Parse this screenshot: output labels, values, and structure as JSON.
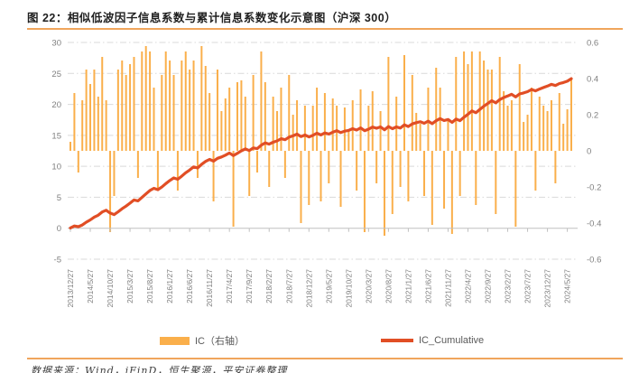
{
  "title": "图 22：相似低波因子信息系数与累计信息系数变化示意图（沪深 300）",
  "footer": "数据来源：Wind，iFinD，恒生聚源，平安证券整理",
  "legend": {
    "bar_label": "IC（右轴）",
    "line_label": "IC_Cumulative"
  },
  "colors": {
    "bar": "#FAAF4B",
    "line": "#E14E25",
    "rule": "#F0A55C",
    "grid": "#D9D9D9",
    "axis": "#C0C0C0",
    "tick_text": "#7F7F7F",
    "title_text": "#1F1F1F"
  },
  "chart_data": {
    "type": "bar+line",
    "title": "相似低波因子信息系数与累计信息系数变化示意图（沪深300）",
    "x_start": "2013/12/27",
    "x_frequency": "monthly",
    "x_tick_labels": [
      "2013/12/27",
      "2014/5/27",
      "2014/10/27",
      "2015/3/27",
      "2015/8/27",
      "2016/1/27",
      "2016/6/27",
      "2016/11/27",
      "2017/4/27",
      "2017/9/27",
      "2018/2/27",
      "2018/7/27",
      "2018/12/27",
      "2019/5/27",
      "2019/10/27",
      "2020/3/27",
      "2020/8/27",
      "2021/1/27",
      "2021/6/27",
      "2021/11/27",
      "2022/4/27",
      "2022/9/27",
      "2023/2/27",
      "2023/7/27",
      "2023/12/27",
      "2024/5/27"
    ],
    "x_tick_every_months": 5,
    "left_axis": {
      "min": -5,
      "max": 30,
      "step": 5,
      "ticks": [
        "30",
        "25",
        "20",
        "15",
        "10",
        "5",
        "0",
        "-5"
      ]
    },
    "right_axis": {
      "min": -0.6,
      "max": 0.6,
      "step": 0.2,
      "ticks": [
        "0.6",
        "0.4",
        "0.2",
        "0",
        "-0.2",
        "-0.4",
        "-0.6"
      ]
    },
    "grid": "dash-dot horizontal at left-axis ticks",
    "legend_position": "bottom",
    "series": [
      {
        "name": "IC（右轴）",
        "type": "bar",
        "axis": "right",
        "values": [
          0.05,
          0.32,
          -0.12,
          0.28,
          0.45,
          0.37,
          0.45,
          0.3,
          0.52,
          0.28,
          -0.45,
          -0.25,
          0.45,
          0.5,
          0.42,
          0.48,
          0.52,
          -0.15,
          0.55,
          0.58,
          0.55,
          0.35,
          -0.22,
          0.42,
          0.55,
          0.5,
          0.42,
          -0.22,
          0.5,
          0.55,
          0.45,
          0.5,
          -0.15,
          0.58,
          0.47,
          0.32,
          -0.28,
          0.45,
          0.22,
          0.29,
          0.35,
          -0.42,
          0.38,
          0.39,
          0.3,
          -0.25,
          0.42,
          -0.12,
          0.55,
          0.38,
          -0.2,
          0.3,
          0.22,
          0.35,
          -0.15,
          0.42,
          0.2,
          0.28,
          -0.4,
          0.25,
          -0.3,
          0.25,
          0.35,
          -0.28,
          0.32,
          -0.18,
          0.29,
          0.25,
          -0.31,
          0.24,
          0.12,
          0.28,
          -0.22,
          0.34,
          -0.45,
          0.25,
          0.33,
          -0.18,
          0.22,
          -0.47,
          0.52,
          -0.35,
          0.3,
          -0.2,
          0.53,
          -0.28,
          0.42,
          0.21,
          0.15,
          -0.25,
          0.35,
          -0.41,
          0.46,
          0.35,
          -0.32,
          0.18,
          -0.46,
          0.52,
          -0.25,
          0.55,
          0.48,
          0.55,
          -0.3,
          0.55,
          0.5,
          0.45,
          0.45,
          -0.35,
          0.52,
          0.33,
          0.25,
          0.28,
          -0.42,
          0.48,
          0.16,
          0.2,
          0.35,
          -0.22,
          0.3,
          0.25,
          0.22,
          0.28,
          -0.18,
          0.32,
          0.15,
          0.23,
          0.4
        ]
      },
      {
        "name": "IC_Cumulative",
        "type": "line",
        "axis": "left",
        "values": [
          0.05,
          0.37,
          0.25,
          0.53,
          0.98,
          1.35,
          1.8,
          2.1,
          2.62,
          2.9,
          2.45,
          2.2,
          2.65,
          3.15,
          3.57,
          4.05,
          4.57,
          4.42,
          4.97,
          5.55,
          6.1,
          6.45,
          6.23,
          6.65,
          7.2,
          7.7,
          8.12,
          7.9,
          8.4,
          8.95,
          9.4,
          9.9,
          9.75,
          10.33,
          10.8,
          11.12,
          10.84,
          11.29,
          11.51,
          11.8,
          12.15,
          11.73,
          12.11,
          12.5,
          12.8,
          12.55,
          12.97,
          12.85,
          13.4,
          13.78,
          13.58,
          13.88,
          14.1,
          14.45,
          14.3,
          14.72,
          14.92,
          15.2,
          14.8,
          15.05,
          14.75,
          15.0,
          15.35,
          15.07,
          15.39,
          15.21,
          15.5,
          15.75,
          15.44,
          15.68,
          15.8,
          16.08,
          15.86,
          16.2,
          15.75,
          16.0,
          16.33,
          16.15,
          16.37,
          15.9,
          16.42,
          16.07,
          16.37,
          16.17,
          16.7,
          16.42,
          16.84,
          17.05,
          17.2,
          16.95,
          17.3,
          16.89,
          17.35,
          17.7,
          17.38,
          17.56,
          17.1,
          17.62,
          17.37,
          17.92,
          18.4,
          18.95,
          18.65,
          19.2,
          19.7,
          20.15,
          20.6,
          20.25,
          20.77,
          21.1,
          21.35,
          21.63,
          21.21,
          21.69,
          21.85,
          22.05,
          22.4,
          22.18,
          22.48,
          22.73,
          22.95,
          23.23,
          23.05,
          23.37,
          23.52,
          23.75,
          24.15
        ]
      }
    ]
  }
}
